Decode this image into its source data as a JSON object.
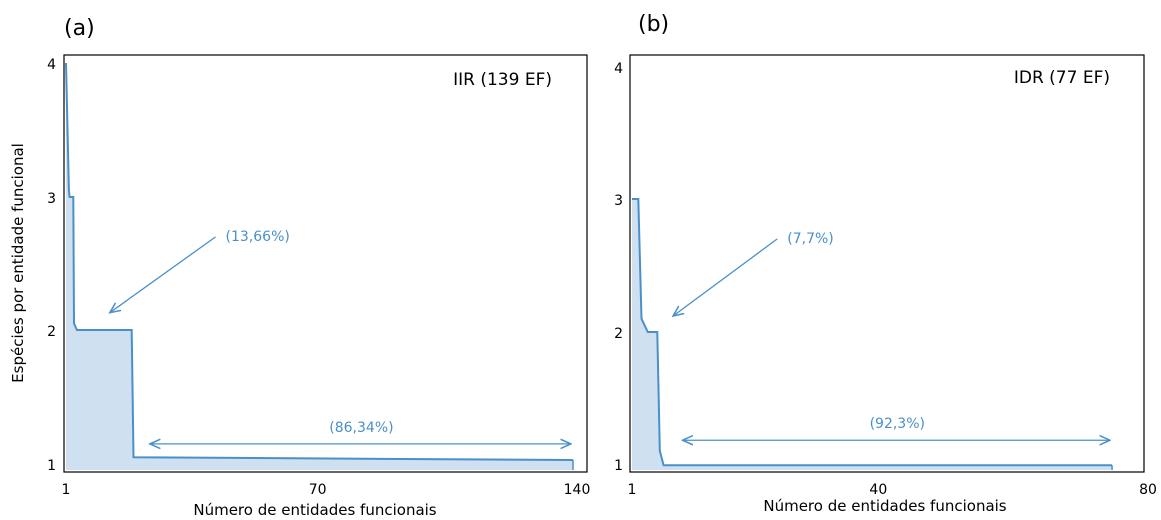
{
  "chart_data": [
    {
      "type": "area",
      "panel_label": "(a)",
      "title": "IIR (139 EF)",
      "xlabel": "Número de entidades funcionais",
      "ylabel": "Espécies por entidade funcional",
      "xlim": [
        1,
        140
      ],
      "ylim": [
        1,
        4
      ],
      "xticks": [
        1,
        70,
        140
      ],
      "xtick_labels": [
        "1",
        "70",
        "140"
      ],
      "yticks": [
        1,
        2,
        3,
        4
      ],
      "ytick_labels": [
        "1",
        "2",
        "3",
        "4"
      ],
      "series": [
        {
          "x": [
            1,
            1.8,
            2,
            3,
            3.2,
            4,
            19,
            19.5,
            140
          ],
          "y": [
            4,
            3.05,
            3,
            3,
            2.05,
            2,
            2,
            1.05,
            1.03
          ]
        }
      ],
      "annotations": [
        {
          "text": "(13,66%)",
          "type": "arrow",
          "from": [
            42,
            2.7
          ],
          "to": [
            13,
            2.13
          ]
        },
        {
          "text": "(86,34%)",
          "type": "double-arrow",
          "from": [
            24,
            1.15
          ],
          "to": [
            140,
            1.15
          ]
        }
      ],
      "color": "#4a90c8",
      "fill_color": "#cfe0f0"
    },
    {
      "type": "area",
      "panel_label": "(b)",
      "title": "IDR (77 EF)",
      "xlabel": "Número de entidades funcionais",
      "ylabel": "",
      "xlim": [
        1,
        80
      ],
      "ylim": [
        1,
        4
      ],
      "xticks": [
        1,
        40,
        80
      ],
      "xtick_labels": [
        "1",
        "40",
        "80"
      ],
      "yticks": [
        1,
        2,
        3,
        4
      ],
      "ytick_labels": [
        "1",
        "2",
        "3",
        "4"
      ],
      "series": [
        {
          "x": [
            1,
            2,
            2.5,
            3.5,
            4,
            5,
            5.4,
            6,
            77
          ],
          "y": [
            3,
            3,
            2.1,
            2,
            2,
            2,
            1.1,
            0.99,
            0.99
          ]
        }
      ],
      "annotations": [
        {
          "text": "(7,7%)",
          "type": "arrow",
          "from": [
            24,
            2.7
          ],
          "to": [
            7.5,
            2.12
          ]
        },
        {
          "text": "(92,3%)",
          "type": "double-arrow",
          "from": [
            9,
            1.18
          ],
          "to": [
            77,
            1.18
          ]
        }
      ],
      "color": "#4a90c8",
      "fill_color": "#cfe0f0"
    }
  ]
}
